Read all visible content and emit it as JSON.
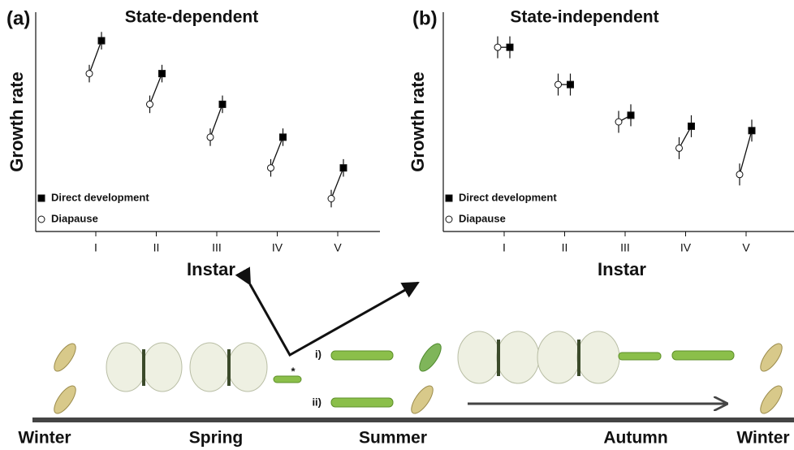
{
  "chart_data": [
    {
      "type": "scatter",
      "panel_label": "(a)",
      "title": "State-dependent",
      "y_label": "Growth rate",
      "x_label": "Instar",
      "categories": [
        "I",
        "II",
        "III",
        "IV",
        "V"
      ],
      "ylim": [
        0,
        100
      ],
      "legend": "lower left",
      "series": [
        {
          "name": "Direct development",
          "color": "#000000",
          "marker": "square",
          "values": [
            87,
            72,
            58,
            43,
            29
          ],
          "errors": [
            4,
            4,
            4,
            4,
            4
          ]
        },
        {
          "name": "Diapause",
          "color": "#ffffff",
          "marker": "circle",
          "values": [
            72,
            58,
            43,
            29,
            15
          ],
          "errors": [
            4,
            4,
            4,
            4,
            4
          ]
        }
      ]
    },
    {
      "type": "scatter",
      "panel_label": "(b)",
      "title": "State-independent",
      "y_label": "Growth rate",
      "x_label": "Instar",
      "categories": [
        "I",
        "II",
        "III",
        "IV",
        "V"
      ],
      "ylim": [
        0,
        100
      ],
      "legend": "lower left",
      "series": [
        {
          "name": "Direct development",
          "color": "#000000",
          "marker": "square",
          "values": [
            84,
            67,
            53,
            48,
            46
          ],
          "errors": [
            5,
            5,
            5,
            5,
            5
          ]
        },
        {
          "name": "Diapause",
          "color": "#ffffff",
          "marker": "circle",
          "values": [
            84,
            67,
            50,
            38,
            26
          ],
          "errors": [
            5,
            5,
            5,
            5,
            5
          ]
        }
      ]
    }
  ],
  "timeline": {
    "seasons": [
      "Winter",
      "Spring",
      "Summer",
      "Autumn",
      "Winter"
    ],
    "paths": [
      "i)",
      "ii)"
    ],
    "marker": "*"
  }
}
